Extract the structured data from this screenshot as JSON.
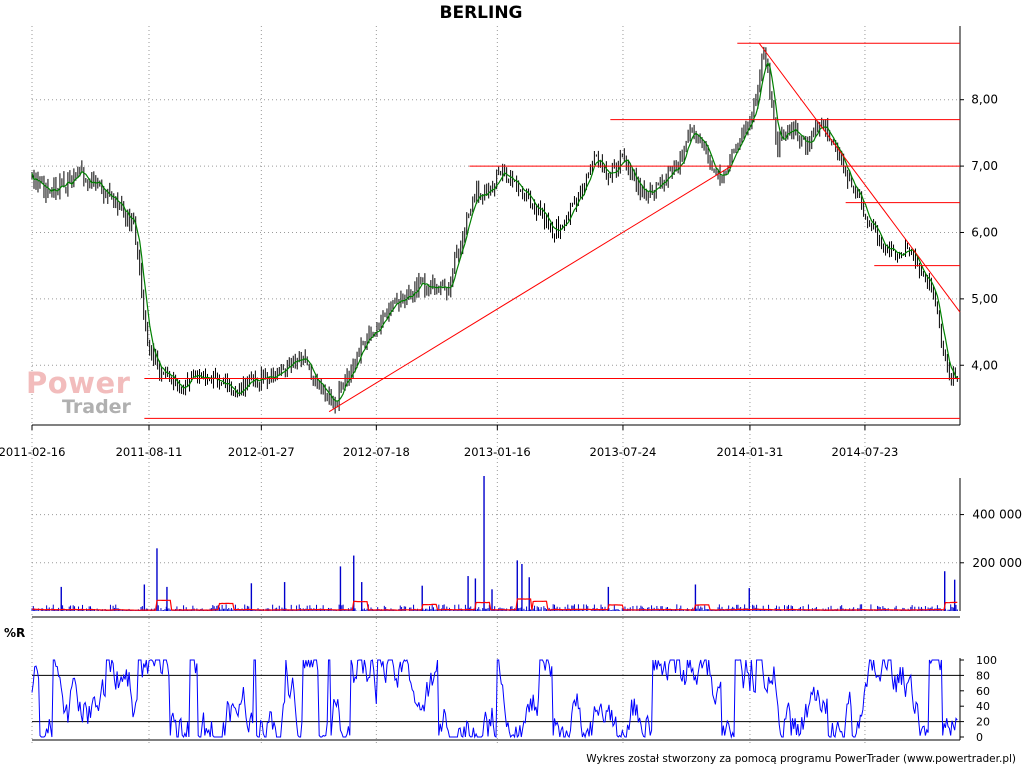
{
  "title": "BERLING",
  "footer": "Wykres został stworzony za pomocą programu PowerTrader (www.powertrader.pl)",
  "watermark": {
    "word1": "Power",
    "word2": "Trader"
  },
  "colors": {
    "price_bars": "#000000",
    "moving_average": "#008000",
    "trend_lines": "#ff0000",
    "volume_bars": "#0000cc",
    "volume_average": "#ff0000",
    "williams_r": "#0000ff",
    "grid": "#9a9a9a"
  },
  "chart_data": [
    {
      "type": "line",
      "name": "price",
      "title": "BERLING",
      "x_tick_labels": [
        "2011-02-16",
        "2011-08-11",
        "2012-01-27",
        "2012-07-18",
        "2013-01-16",
        "2013-07-24",
        "2014-01-31",
        "2014-07-23"
      ],
      "y_tick_labels": [
        "4,00",
        "5,00",
        "6,00",
        "7,00",
        "8,00"
      ],
      "y_ticks": [
        4,
        5,
        6,
        7,
        8
      ],
      "ylim": [
        3.1,
        9.05
      ],
      "grid": true,
      "x": [
        "2011-02-16",
        "2011-03-10",
        "2011-04-01",
        "2011-05-02",
        "2011-06-01",
        "2011-06-28",
        "2011-07-20",
        "2011-08-11",
        "2011-09-01",
        "2011-09-22",
        "2011-10-14",
        "2011-11-04",
        "2011-11-25",
        "2011-12-16",
        "2012-01-06",
        "2012-01-27",
        "2012-02-17",
        "2012-03-09",
        "2012-04-02",
        "2012-04-23",
        "2012-05-14",
        "2012-06-04",
        "2012-06-25",
        "2012-07-18",
        "2012-08-08",
        "2012-08-29",
        "2012-09-19",
        "2012-10-10",
        "2012-10-31",
        "2012-11-21",
        "2012-12-12",
        "2013-01-02",
        "2013-01-16",
        "2013-02-06",
        "2013-02-27",
        "2013-03-20",
        "2013-04-10",
        "2013-05-01",
        "2013-05-22",
        "2013-06-12",
        "2013-07-03",
        "2013-07-24",
        "2013-08-14",
        "2013-09-04",
        "2013-09-25",
        "2013-10-16",
        "2013-11-06",
        "2013-11-27",
        "2013-12-18",
        "2014-01-08",
        "2014-01-31",
        "2014-02-07",
        "2014-02-21",
        "2014-03-14",
        "2014-04-04",
        "2014-04-25",
        "2014-05-16",
        "2014-06-06",
        "2014-06-27",
        "2014-07-23",
        "2014-08-13",
        "2014-09-03",
        "2014-09-24",
        "2014-10-15",
        "2014-11-05",
        "2014-11-26"
      ],
      "series": [
        {
          "values": [
            6.8,
            6.6,
            6.7,
            6.9,
            6.6,
            6.4,
            6.1,
            4.2,
            3.9,
            3.7,
            3.8,
            3.9,
            3.8,
            3.6,
            3.75,
            3.8,
            3.8,
            4.0,
            4.1,
            3.7,
            3.4,
            3.8,
            4.3,
            4.5,
            4.9,
            5.0,
            5.2,
            5.2,
            5.1,
            5.8,
            6.6,
            6.6,
            6.8,
            6.9,
            6.6,
            6.3,
            6.0,
            6.2,
            6.6,
            7.1,
            6.8,
            7.1,
            6.7,
            6.6,
            6.8,
            7.0,
            7.6,
            7.2,
            6.8,
            7.2,
            7.7,
            7.9,
            8.8,
            7.3,
            7.6,
            7.3,
            7.6,
            7.4,
            6.8,
            6.3,
            5.9,
            5.7,
            5.8,
            5.5,
            5.0,
            3.8
          ]
        }
      ]
    },
    {
      "type": "bar",
      "name": "volume",
      "y_tick_labels": [
        "200 000",
        "400 000"
      ],
      "y_ticks": [
        200000,
        400000
      ],
      "ylim": [
        0,
        560000
      ],
      "grid": true,
      "spikes": [
        {
          "x": "2011-04-01",
          "value": 100000
        },
        {
          "x": "2011-08-04",
          "value": 110000
        },
        {
          "x": "2011-08-23",
          "value": 260000
        },
        {
          "x": "2011-09-07",
          "value": 100000
        },
        {
          "x": "2012-01-12",
          "value": 115000
        },
        {
          "x": "2012-03-02",
          "value": 120000
        },
        {
          "x": "2012-05-25",
          "value": 185000
        },
        {
          "x": "2012-06-14",
          "value": 230000
        },
        {
          "x": "2012-06-26",
          "value": 120000
        },
        {
          "x": "2012-09-25",
          "value": 105000
        },
        {
          "x": "2012-12-03",
          "value": 145000
        },
        {
          "x": "2012-12-14",
          "value": 135000
        },
        {
          "x": "2012-12-27",
          "value": 560000
        },
        {
          "x": "2013-01-08",
          "value": 90000
        },
        {
          "x": "2013-02-15",
          "value": 210000
        },
        {
          "x": "2013-02-22",
          "value": 195000
        },
        {
          "x": "2013-03-05",
          "value": 140000
        },
        {
          "x": "2013-07-02",
          "value": 100000
        },
        {
          "x": "2013-11-10",
          "value": 110000
        },
        {
          "x": "2014-01-30",
          "value": 95000
        },
        {
          "x": "2014-11-20",
          "value": 165000
        },
        {
          "x": "2014-12-05",
          "value": 130000
        }
      ]
    },
    {
      "type": "line",
      "name": "williams_r",
      "title": "%R",
      "y_tick_labels": [
        "0",
        "20",
        "40",
        "60",
        "80",
        "100"
      ],
      "y_ticks": [
        0,
        20,
        40,
        60,
        80,
        100
      ],
      "ylim": [
        0,
        100
      ],
      "reference_lines": [
        20,
        80
      ]
    }
  ]
}
